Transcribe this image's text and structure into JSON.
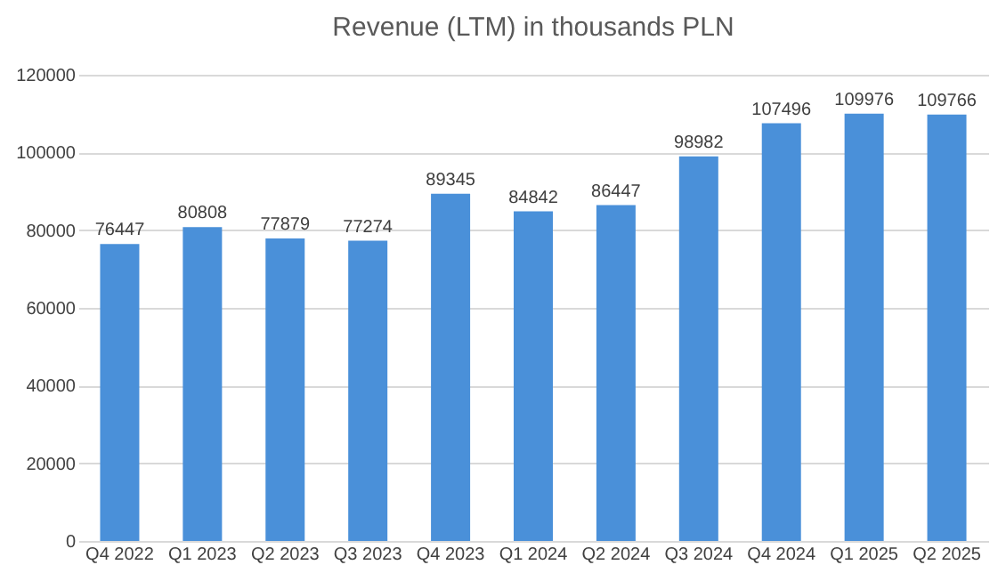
{
  "chart_data": {
    "type": "bar",
    "title": "Revenue (LTM) in thousands PLN",
    "categories": [
      "Q4 2022",
      "Q1 2023",
      "Q2 2023",
      "Q3 2023",
      "Q4 2023",
      "Q1 2024",
      "Q2 2024",
      "Q3 2024",
      "Q4 2024",
      "Q1 2025",
      "Q2 2025"
    ],
    "values": [
      76447,
      80808,
      77879,
      77274,
      89345,
      84842,
      86447,
      98982,
      107496,
      109976,
      109766
    ],
    "color": "#4a90d9",
    "ylim": [
      0,
      120000
    ],
    "yticks": [
      0,
      20000,
      40000,
      60000,
      80000,
      100000,
      120000
    ],
    "grid": "y",
    "data_labels": true
  }
}
